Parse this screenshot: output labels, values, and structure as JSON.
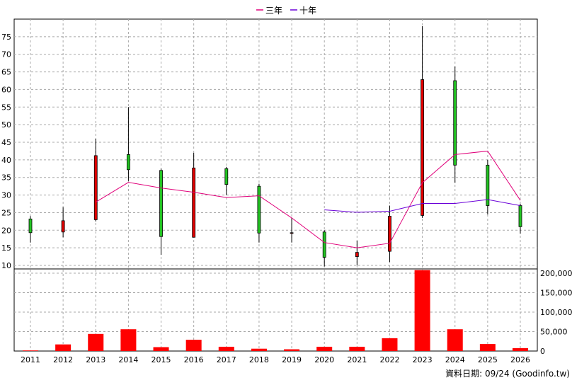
{
  "legend": [
    {
      "label": "三年",
      "color": "#e0007a"
    },
    {
      "label": "十年",
      "color": "#6a00d8"
    }
  ],
  "footer": "資料日期: 09/24 (Goodinfo.tw)",
  "colors": {
    "up": "#e00000",
    "down": "#22c422",
    "volume": "#ff0000",
    "grid": "#a8a8a8"
  },
  "chart_data": {
    "type": "candlestick",
    "categories": [
      "2011",
      "2012",
      "2013",
      "2014",
      "2015",
      "2016",
      "2017",
      "2018",
      "2019",
      "2020",
      "2021",
      "2022",
      "2023",
      "2024",
      "2025",
      "2026"
    ],
    "ohlc": [
      {
        "open": 23.2,
        "high": 24.0,
        "low": 16.5,
        "close": 19.3
      },
      {
        "open": 19.5,
        "high": 26.5,
        "low": 18.0,
        "close": 22.7
      },
      {
        "open": 23.0,
        "high": 46.0,
        "low": 22.5,
        "close": 41.2
      },
      {
        "open": 41.5,
        "high": 55.0,
        "low": 34.0,
        "close": 37.2
      },
      {
        "open": 37.0,
        "high": 37.5,
        "low": 13.0,
        "close": 18.2
      },
      {
        "open": 18.0,
        "high": 42.0,
        "low": 18.0,
        "close": 37.7
      },
      {
        "open": 37.5,
        "high": 38.0,
        "low": 30.0,
        "close": 33.0
      },
      {
        "open": 32.5,
        "high": 33.2,
        "low": 16.5,
        "close": 19.2
      },
      {
        "open": 19.3,
        "high": 23.5,
        "low": 16.5,
        "close": 19.3
      },
      {
        "open": 19.5,
        "high": 20.0,
        "low": 9.7,
        "close": 12.3
      },
      {
        "open": 12.5,
        "high": 17.0,
        "low": 10.0,
        "close": 13.7
      },
      {
        "open": 14.0,
        "high": 27.0,
        "low": 11.0,
        "close": 24.0
      },
      {
        "open": 24.2,
        "high": 78.0,
        "low": 23.5,
        "close": 62.8
      },
      {
        "open": 62.5,
        "high": 66.5,
        "low": 33.5,
        "close": 38.5
      },
      {
        "open": 38.5,
        "high": 40.0,
        "low": 24.5,
        "close": 27.0
      },
      {
        "open": 27.0,
        "high": 27.5,
        "low": 19.0,
        "close": 21.0
      }
    ],
    "series": [
      {
        "name": "三年",
        "values": [
          null,
          null,
          28.0,
          33.6,
          32.0,
          30.8,
          29.3,
          29.8,
          23.5,
          16.5,
          15.0,
          16.3,
          33.5,
          41.5,
          42.5,
          28.5
        ]
      },
      {
        "name": "十年",
        "values": [
          null,
          null,
          null,
          null,
          null,
          null,
          null,
          null,
          null,
          25.8,
          25.1,
          25.4,
          27.6,
          27.6,
          28.7,
          27.0
        ]
      }
    ],
    "volume": [
      1500,
      17000,
      44000,
      56000,
      10000,
      29000,
      11000,
      6000,
      4500,
      11000,
      11000,
      33000,
      208000,
      56000,
      18000,
      7500
    ],
    "price_ticks": [
      10,
      15,
      20,
      25,
      30,
      35,
      40,
      45,
      50,
      55,
      60,
      65,
      70,
      75
    ],
    "volume_ticks": [
      "0",
      "50,000",
      "100,000",
      "150,000",
      "200,000"
    ],
    "ylim": [
      9,
      80
    ],
    "volume_max": 211000
  }
}
